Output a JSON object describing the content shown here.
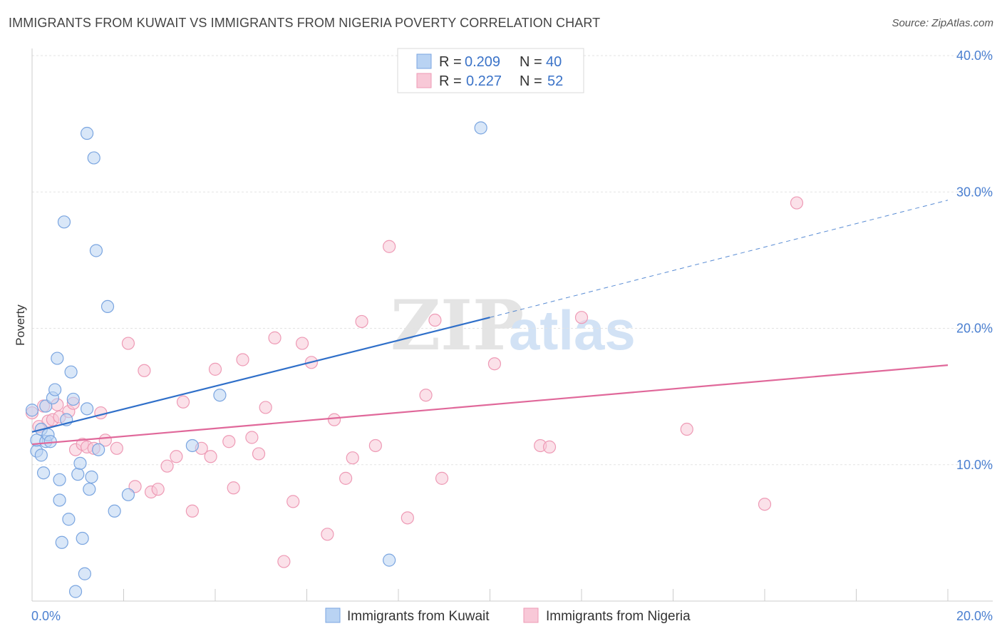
{
  "header": {
    "title": "IMMIGRANTS FROM KUWAIT VS IMMIGRANTS FROM NIGERIA POVERTY CORRELATION CHART",
    "source": "Source: ZipAtlas.com"
  },
  "watermark": {
    "zip": "ZIP",
    "atlas": "atlas"
  },
  "colors": {
    "kuwait_fill": "#b9d3f3",
    "kuwait_stroke": "#7aa5e0",
    "kuwait_line": "#2f6fc9",
    "nigeria_fill": "#f8c8d7",
    "nigeria_stroke": "#ee9ab5",
    "nigeria_line": "#e0689a",
    "axis_label": "#4a7fd0"
  },
  "legend": {
    "kuwait": {
      "r_label": "R =",
      "r_value": "0.209",
      "n_label": "N =",
      "n_value": "40"
    },
    "nigeria": {
      "r_label": "R =",
      "r_value": "0.227",
      "n_label": "N =",
      "n_value": "52"
    }
  },
  "chart_data": {
    "type": "scatter",
    "title": "IMMIGRANTS FROM KUWAIT VS IMMIGRANTS FROM NIGERIA POVERTY CORRELATION CHART",
    "xlabel": "",
    "ylabel": "Poverty",
    "xlim": [
      0,
      20
    ],
    "ylim": [
      0,
      40
    ],
    "x_tick_labels": [
      {
        "value": 0,
        "label": "0.0%"
      },
      {
        "value": 20,
        "label": "20.0%"
      }
    ],
    "y_tick_labels": [
      {
        "value": 10,
        "label": "10.0%"
      },
      {
        "value": 20,
        "label": "20.0%"
      },
      {
        "value": 30,
        "label": "30.0%"
      },
      {
        "value": 40,
        "label": "40.0%"
      }
    ],
    "grid": true,
    "legend_position": "bottom-center",
    "series": [
      {
        "name": "Immigrants from Kuwait",
        "r": 0.209,
        "n": 40,
        "trend": {
          "x0": 0,
          "y0": 12.4,
          "x1": 10.0,
          "y1": 20.8,
          "dashed_to_x": 20,
          "dashed_to_y": 29.4
        },
        "points": [
          [
            0.0,
            14.0
          ],
          [
            0.1,
            11.0
          ],
          [
            0.1,
            11.8
          ],
          [
            0.2,
            10.7
          ],
          [
            0.2,
            12.6
          ],
          [
            0.25,
            9.4
          ],
          [
            0.3,
            14.3
          ],
          [
            0.3,
            11.7
          ],
          [
            0.35,
            12.2
          ],
          [
            0.4,
            11.7
          ],
          [
            0.45,
            14.9
          ],
          [
            0.5,
            15.5
          ],
          [
            0.55,
            17.8
          ],
          [
            0.6,
            7.4
          ],
          [
            0.6,
            8.9
          ],
          [
            0.75,
            13.3
          ],
          [
            0.7,
            27.8
          ],
          [
            0.8,
            6.0
          ],
          [
            0.85,
            16.8
          ],
          [
            0.9,
            14.8
          ],
          [
            1.0,
            9.3
          ],
          [
            1.05,
            10.1
          ],
          [
            1.1,
            4.6
          ],
          [
            1.15,
            2.0
          ],
          [
            1.2,
            14.1
          ],
          [
            1.2,
            34.3
          ],
          [
            1.25,
            8.2
          ],
          [
            1.3,
            9.1
          ],
          [
            1.35,
            32.5
          ],
          [
            1.4,
            25.7
          ],
          [
            1.45,
            11.1
          ],
          [
            1.65,
            21.6
          ],
          [
            1.8,
            6.6
          ],
          [
            2.1,
            7.8
          ],
          [
            3.5,
            11.4
          ],
          [
            4.1,
            15.1
          ],
          [
            7.8,
            3.0
          ],
          [
            9.8,
            34.7
          ],
          [
            0.95,
            0.7
          ],
          [
            0.65,
            4.3
          ]
        ]
      },
      {
        "name": "Immigrants from Nigeria",
        "r": 0.227,
        "n": 52,
        "trend": {
          "x0": 0,
          "y0": 11.5,
          "x1": 20,
          "y1": 17.3
        },
        "points": [
          [
            0.0,
            13.8
          ],
          [
            0.15,
            12.8
          ],
          [
            0.25,
            14.3
          ],
          [
            0.35,
            13.2
          ],
          [
            0.45,
            13.3
          ],
          [
            0.55,
            14.4
          ],
          [
            0.6,
            13.5
          ],
          [
            0.8,
            13.9
          ],
          [
            0.9,
            14.5
          ],
          [
            0.95,
            11.1
          ],
          [
            1.1,
            11.5
          ],
          [
            1.2,
            11.3
          ],
          [
            1.35,
            11.2
          ],
          [
            1.5,
            13.8
          ],
          [
            1.6,
            11.8
          ],
          [
            1.85,
            11.2
          ],
          [
            2.1,
            18.9
          ],
          [
            2.25,
            8.4
          ],
          [
            2.45,
            16.9
          ],
          [
            2.6,
            8.0
          ],
          [
            2.75,
            8.2
          ],
          [
            2.95,
            9.9
          ],
          [
            3.15,
            10.6
          ],
          [
            3.3,
            14.6
          ],
          [
            3.5,
            6.6
          ],
          [
            3.7,
            11.2
          ],
          [
            3.9,
            10.6
          ],
          [
            4.0,
            17.0
          ],
          [
            4.3,
            11.7
          ],
          [
            4.4,
            8.3
          ],
          [
            4.6,
            17.7
          ],
          [
            4.8,
            12.0
          ],
          [
            4.95,
            10.8
          ],
          [
            5.1,
            14.2
          ],
          [
            5.3,
            19.3
          ],
          [
            5.5,
            2.9
          ],
          [
            5.7,
            7.3
          ],
          [
            5.9,
            18.9
          ],
          [
            6.1,
            17.5
          ],
          [
            6.45,
            4.9
          ],
          [
            6.6,
            13.3
          ],
          [
            6.85,
            9.0
          ],
          [
            7.0,
            10.5
          ],
          [
            7.2,
            20.5
          ],
          [
            7.5,
            11.4
          ],
          [
            7.8,
            26.0
          ],
          [
            8.2,
            6.1
          ],
          [
            8.6,
            15.1
          ],
          [
            8.8,
            20.6
          ],
          [
            8.95,
            9.0
          ],
          [
            10.1,
            17.4
          ],
          [
            11.1,
            11.4
          ]
        ],
        "extra_points": [
          [
            11.3,
            11.3
          ],
          [
            12.0,
            20.8
          ],
          [
            14.3,
            12.6
          ],
          [
            16.0,
            7.1
          ],
          [
            16.7,
            29.2
          ]
        ]
      }
    ]
  }
}
